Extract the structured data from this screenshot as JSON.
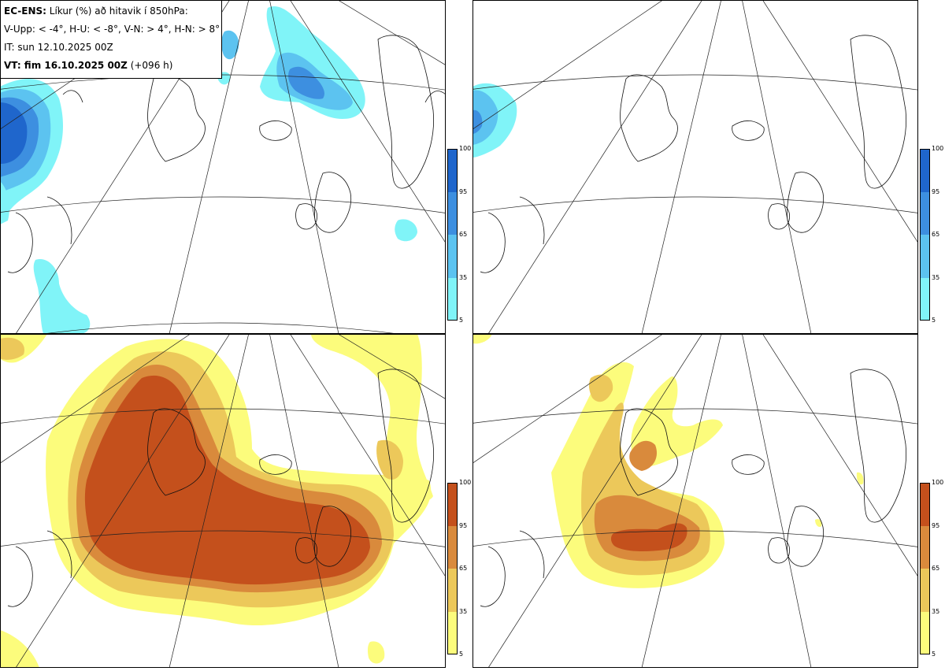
{
  "info": {
    "line1_bold": "EC-ENS:",
    "line1_rest": " Líkur (%) að hitavik í 850hPa:",
    "line2": "V-Upp: < -4°, H-U: < -8°, V-N: > 4°, H-N: > 8°",
    "line3": "IT: sun 12.10.2025 00Z",
    "line4_bold": "VT: fim 16.10.2025 00Z",
    "line4_rest": " (+096 h)"
  },
  "legends": {
    "cold": {
      "ticks": [
        "100",
        "95",
        "65",
        "35",
        "5"
      ],
      "colors": [
        "#1f66cc",
        "#3d8fe0",
        "#5cc3f0",
        "#80f4f8"
      ]
    },
    "warm": {
      "ticks": [
        "100",
        "95",
        "65",
        "35",
        "5"
      ],
      "colors": [
        "#c4501c",
        "#d98a3c",
        "#ecc85a",
        "#fcfc7c"
      ]
    }
  },
  "panels": [
    {
      "id": "top-left",
      "legend": "cold"
    },
    {
      "id": "top-right",
      "legend": "cold"
    },
    {
      "id": "bottom-left",
      "legend": "warm"
    },
    {
      "id": "bottom-right",
      "legend": "warm"
    }
  ]
}
